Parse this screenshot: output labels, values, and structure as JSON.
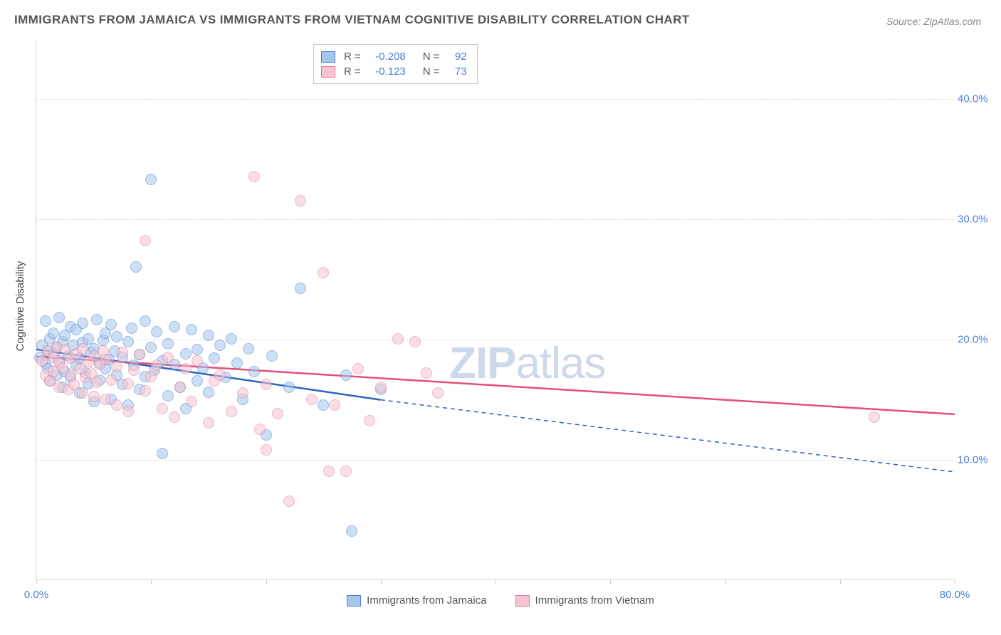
{
  "title": "IMMIGRANTS FROM JAMAICA VS IMMIGRANTS FROM VIETNAM COGNITIVE DISABILITY CORRELATION CHART",
  "source": "Source: ZipAtlas.com",
  "y_axis_title": "Cognitive Disability",
  "watermark_bold": "ZIP",
  "watermark_light": "atlas",
  "chart": {
    "type": "scatter",
    "xlim": [
      0,
      80
    ],
    "ylim": [
      0,
      45
    ],
    "x_ticks": [
      0,
      10,
      20,
      30,
      40,
      50,
      60,
      70,
      80
    ],
    "x_tick_labels": {
      "0": "0.0%",
      "80": "80.0%"
    },
    "y_ticks": [
      10,
      20,
      30,
      40
    ],
    "y_tick_labels": {
      "10": "10.0%",
      "20": "20.0%",
      "30": "30.0%",
      "40": "40.0%"
    },
    "background_color": "#ffffff",
    "grid_color": "#d8d8d8",
    "axis_color": "#d0d0d0",
    "tick_label_color": "#4a7fd8",
    "marker_radius": 8,
    "marker_opacity": 0.55,
    "series": [
      {
        "name": "Immigrants from Jamaica",
        "fill_color": "#a6c6ec",
        "stroke_color": "#4a7fd8",
        "line_color": "#2b62c4",
        "line_width": 2.5,
        "R": "-0.208",
        "N": "92",
        "trend": {
          "x1": 0,
          "y1": 19.2,
          "x2": 30,
          "y2": 15.0,
          "dash_x2": 80,
          "dash_y2": 9.0
        },
        "points": [
          [
            0.3,
            18.5
          ],
          [
            0.5,
            19.5
          ],
          [
            0.8,
            18.0
          ],
          [
            0.8,
            21.5
          ],
          [
            1.0,
            17.5
          ],
          [
            1.0,
            19.0
          ],
          [
            1.2,
            20.0
          ],
          [
            1.2,
            16.5
          ],
          [
            1.5,
            18.8
          ],
          [
            1.5,
            20.5
          ],
          [
            1.8,
            17.0
          ],
          [
            1.8,
            19.3
          ],
          [
            2.0,
            21.8
          ],
          [
            2.0,
            18.2
          ],
          [
            2.3,
            16.0
          ],
          [
            2.3,
            19.8
          ],
          [
            2.5,
            20.3
          ],
          [
            2.5,
            17.3
          ],
          [
            2.8,
            18.6
          ],
          [
            3.0,
            21.0
          ],
          [
            3.0,
            16.8
          ],
          [
            3.2,
            19.5
          ],
          [
            3.5,
            17.8
          ],
          [
            3.5,
            20.8
          ],
          [
            3.8,
            15.5
          ],
          [
            3.8,
            18.4
          ],
          [
            4.0,
            19.7
          ],
          [
            4.0,
            21.3
          ],
          [
            4.3,
            17.2
          ],
          [
            4.5,
            16.3
          ],
          [
            4.5,
            20.0
          ],
          [
            4.8,
            18.9
          ],
          [
            5.0,
            19.2
          ],
          [
            5.0,
            14.8
          ],
          [
            5.3,
            21.6
          ],
          [
            5.5,
            18.0
          ],
          [
            5.5,
            16.6
          ],
          [
            5.8,
            19.9
          ],
          [
            6.0,
            17.5
          ],
          [
            6.0,
            20.5
          ],
          [
            6.3,
            18.3
          ],
          [
            6.5,
            15.0
          ],
          [
            6.5,
            21.2
          ],
          [
            6.8,
            19.0
          ],
          [
            7.0,
            17.0
          ],
          [
            7.0,
            20.2
          ],
          [
            7.5,
            18.5
          ],
          [
            7.5,
            16.2
          ],
          [
            8.0,
            19.8
          ],
          [
            8.0,
            14.5
          ],
          [
            8.3,
            20.9
          ],
          [
            8.5,
            17.8
          ],
          [
            8.7,
            26.0
          ],
          [
            9.0,
            18.7
          ],
          [
            9.0,
            15.8
          ],
          [
            9.5,
            21.5
          ],
          [
            9.5,
            16.9
          ],
          [
            10.0,
            33.3
          ],
          [
            10.0,
            19.3
          ],
          [
            10.3,
            17.4
          ],
          [
            10.5,
            20.6
          ],
          [
            11.0,
            18.2
          ],
          [
            11.0,
            10.5
          ],
          [
            11.5,
            15.3
          ],
          [
            11.5,
            19.6
          ],
          [
            12.0,
            17.9
          ],
          [
            12.0,
            21.0
          ],
          [
            12.5,
            16.0
          ],
          [
            13.0,
            18.8
          ],
          [
            13.0,
            14.2
          ],
          [
            13.5,
            20.8
          ],
          [
            14.0,
            19.1
          ],
          [
            14.0,
            16.5
          ],
          [
            14.5,
            17.6
          ],
          [
            15.0,
            20.3
          ],
          [
            15.0,
            15.6
          ],
          [
            15.5,
            18.4
          ],
          [
            16.0,
            19.5
          ],
          [
            16.5,
            16.8
          ],
          [
            17.0,
            20.0
          ],
          [
            17.5,
            18.0
          ],
          [
            18.0,
            15.0
          ],
          [
            18.5,
            19.2
          ],
          [
            19.0,
            17.3
          ],
          [
            20.0,
            12.0
          ],
          [
            20.5,
            18.6
          ],
          [
            22.0,
            16.0
          ],
          [
            23.0,
            24.2
          ],
          [
            25.0,
            14.5
          ],
          [
            27.0,
            17.0
          ],
          [
            27.5,
            4.0
          ],
          [
            30.0,
            15.8
          ]
        ]
      },
      {
        "name": "Immigrants from Vietnam",
        "fill_color": "#f5c6d1",
        "stroke_color": "#e27a9a",
        "line_color": "#e84d7a",
        "line_width": 2.5,
        "R": "-0.123",
        "N": "73",
        "trend": {
          "x1": 0,
          "y1": 18.6,
          "x2": 80,
          "y2": 13.8
        },
        "points": [
          [
            0.5,
            18.2
          ],
          [
            0.8,
            17.0
          ],
          [
            1.0,
            19.0
          ],
          [
            1.2,
            16.5
          ],
          [
            1.5,
            18.5
          ],
          [
            1.5,
            17.3
          ],
          [
            1.8,
            19.3
          ],
          [
            2.0,
            16.0
          ],
          [
            2.0,
            18.0
          ],
          [
            2.3,
            17.6
          ],
          [
            2.5,
            19.1
          ],
          [
            2.8,
            15.8
          ],
          [
            3.0,
            18.4
          ],
          [
            3.0,
            17.0
          ],
          [
            3.3,
            16.2
          ],
          [
            3.5,
            18.8
          ],
          [
            3.8,
            17.5
          ],
          [
            4.0,
            15.5
          ],
          [
            4.0,
            19.2
          ],
          [
            4.3,
            16.8
          ],
          [
            4.5,
            18.1
          ],
          [
            4.8,
            17.2
          ],
          [
            5.0,
            15.2
          ],
          [
            5.0,
            18.6
          ],
          [
            5.3,
            16.4
          ],
          [
            5.5,
            17.9
          ],
          [
            5.8,
            19.0
          ],
          [
            6.0,
            15.0
          ],
          [
            6.0,
            18.3
          ],
          [
            6.5,
            16.6
          ],
          [
            7.0,
            17.7
          ],
          [
            7.0,
            14.5
          ],
          [
            7.5,
            18.9
          ],
          [
            8.0,
            14.0
          ],
          [
            8.0,
            16.3
          ],
          [
            8.5,
            17.4
          ],
          [
            9.0,
            18.7
          ],
          [
            9.5,
            15.7
          ],
          [
            9.5,
            28.2
          ],
          [
            10.0,
            16.9
          ],
          [
            10.5,
            17.8
          ],
          [
            11.0,
            14.2
          ],
          [
            11.5,
            18.5
          ],
          [
            12.0,
            13.5
          ],
          [
            12.5,
            16.0
          ],
          [
            13.0,
            17.5
          ],
          [
            13.5,
            14.8
          ],
          [
            14.0,
            18.2
          ],
          [
            15.0,
            13.0
          ],
          [
            15.5,
            16.5
          ],
          [
            16.0,
            17.0
          ],
          [
            17.0,
            14.0
          ],
          [
            18.0,
            15.5
          ],
          [
            19.0,
            33.5
          ],
          [
            19.5,
            12.5
          ],
          [
            20.0,
            16.2
          ],
          [
            20.0,
            10.8
          ],
          [
            21.0,
            13.8
          ],
          [
            22.0,
            6.5
          ],
          [
            23.0,
            31.5
          ],
          [
            24.0,
            15.0
          ],
          [
            25.0,
            25.5
          ],
          [
            25.5,
            9.0
          ],
          [
            26.0,
            14.5
          ],
          [
            27.0,
            9.0
          ],
          [
            28.0,
            17.5
          ],
          [
            29.0,
            13.2
          ],
          [
            30.0,
            16.0
          ],
          [
            31.5,
            20.0
          ],
          [
            33.0,
            19.8
          ],
          [
            34.0,
            17.2
          ],
          [
            35.0,
            15.5
          ],
          [
            73.0,
            13.5
          ]
        ]
      }
    ]
  },
  "legend_bottom": [
    {
      "label": "Immigrants from Jamaica",
      "fill": "#a6c6ec",
      "stroke": "#4a7fd8"
    },
    {
      "label": "Immigrants from Vietnam",
      "fill": "#f5c6d1",
      "stroke": "#e27a9a"
    }
  ],
  "legend_stats_labels": {
    "R": "R =",
    "N": "N ="
  }
}
